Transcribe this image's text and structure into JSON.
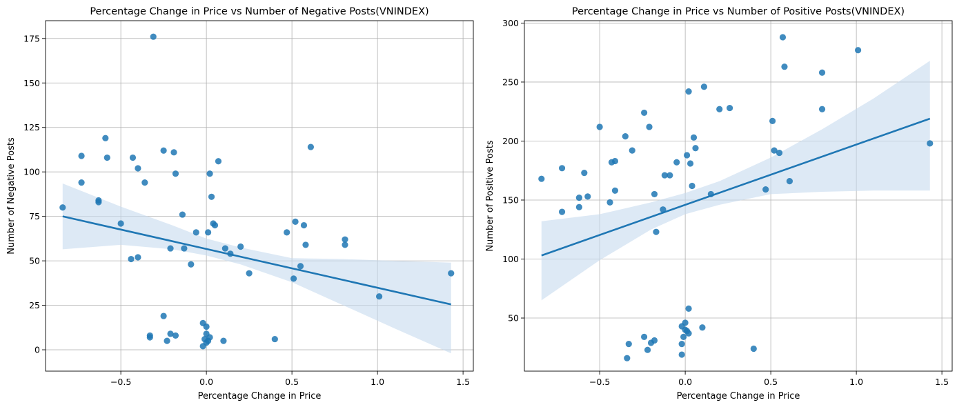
{
  "colors": {
    "point": "#1f77b4",
    "line": "#1f77b4",
    "band": "#c6dbef",
    "grid": "#b0b0b0",
    "axis": "#000000"
  },
  "chart_data": [
    {
      "type": "scatter",
      "title": "Percentage Change in Price vs Number of Negative Posts(VNINDEX)",
      "xlabel": "Percentage Change in Price",
      "ylabel": "Number of Negative Posts",
      "xlim": [
        -0.94,
        1.56
      ],
      "ylim": [
        -12,
        185
      ],
      "xticks": [
        -0.5,
        0.0,
        0.5,
        1.0,
        1.5
      ],
      "xtick_labels": [
        "−0.5",
        "0.0",
        "0.5",
        "1.0",
        "1.5"
      ],
      "yticks": [
        0,
        25,
        50,
        75,
        100,
        125,
        150,
        175
      ],
      "ytick_labels": [
        "0",
        "25",
        "50",
        "75",
        "100",
        "125",
        "150",
        "175"
      ],
      "grid": true,
      "regression": {
        "x": [
          -0.84,
          1.43
        ],
        "y": [
          75,
          25.5
        ]
      },
      "confidence_band": {
        "x": [
          -0.84,
          -0.5,
          -0.2,
          0.0,
          0.2,
          0.5,
          0.8,
          1.1,
          1.43
        ],
        "upper": [
          93.5,
          80.5,
          70,
          62.5,
          57.5,
          51.5,
          51,
          50,
          49
        ],
        "lower": [
          56.5,
          59,
          56.5,
          53,
          48,
          38,
          25,
          12,
          -2
        ]
      },
      "points": [
        {
          "x": -0.84,
          "y": 80
        },
        {
          "x": -0.31,
          "y": 176
        },
        {
          "x": -0.73,
          "y": 109
        },
        {
          "x": -0.73,
          "y": 94
        },
        {
          "x": -0.63,
          "y": 84
        },
        {
          "x": -0.63,
          "y": 83
        },
        {
          "x": -0.59,
          "y": 119
        },
        {
          "x": -0.58,
          "y": 108
        },
        {
          "x": -0.5,
          "y": 71
        },
        {
          "x": -0.43,
          "y": 108
        },
        {
          "x": -0.4,
          "y": 102
        },
        {
          "x": -0.36,
          "y": 94
        },
        {
          "x": -0.44,
          "y": 51
        },
        {
          "x": -0.4,
          "y": 52
        },
        {
          "x": -0.25,
          "y": 112
        },
        {
          "x": -0.19,
          "y": 111
        },
        {
          "x": -0.18,
          "y": 99
        },
        {
          "x": -0.14,
          "y": 76
        },
        {
          "x": -0.21,
          "y": 57
        },
        {
          "x": -0.13,
          "y": 57
        },
        {
          "x": -0.06,
          "y": 66
        },
        {
          "x": -0.09,
          "y": 48
        },
        {
          "x": 0.02,
          "y": 99
        },
        {
          "x": 0.07,
          "y": 106
        },
        {
          "x": 0.03,
          "y": 86
        },
        {
          "x": 0.04,
          "y": 71
        },
        {
          "x": 0.05,
          "y": 70
        },
        {
          "x": 0.01,
          "y": 66
        },
        {
          "x": 0.11,
          "y": 57
        },
        {
          "x": 0.2,
          "y": 58
        },
        {
          "x": 0.14,
          "y": 54
        },
        {
          "x": 0.25,
          "y": 43
        },
        {
          "x": 0.47,
          "y": 66
        },
        {
          "x": 0.52,
          "y": 72
        },
        {
          "x": 0.57,
          "y": 70
        },
        {
          "x": 0.58,
          "y": 59
        },
        {
          "x": 0.61,
          "y": 114
        },
        {
          "x": 0.55,
          "y": 47
        },
        {
          "x": 0.51,
          "y": 40
        },
        {
          "x": 0.81,
          "y": 62
        },
        {
          "x": 0.81,
          "y": 59
        },
        {
          "x": 1.01,
          "y": 30
        },
        {
          "x": 1.43,
          "y": 43
        },
        {
          "x": -0.33,
          "y": 8
        },
        {
          "x": -0.33,
          "y": 7
        },
        {
          "x": -0.25,
          "y": 19
        },
        {
          "x": -0.21,
          "y": 9
        },
        {
          "x": -0.18,
          "y": 8
        },
        {
          "x": -0.23,
          "y": 5
        },
        {
          "x": -0.02,
          "y": 15
        },
        {
          "x": 0.0,
          "y": 13
        },
        {
          "x": 0.0,
          "y": 9
        },
        {
          "x": 0.02,
          "y": 7
        },
        {
          "x": -0.01,
          "y": 6
        },
        {
          "x": 0.01,
          "y": 5
        },
        {
          "x": 0.0,
          "y": 4
        },
        {
          "x": -0.02,
          "y": 2
        },
        {
          "x": 0.1,
          "y": 5
        },
        {
          "x": 0.4,
          "y": 6
        }
      ]
    },
    {
      "type": "scatter",
      "title": "Percentage Change in Price vs Number of Positive Posts(VNINDEX)",
      "xlabel": "Percentage Change in Price",
      "ylabel": "Number of Positive Posts",
      "xlim": [
        -0.94,
        1.56
      ],
      "ylim": [
        5,
        302
      ],
      "xticks": [
        -0.5,
        0.0,
        0.5,
        1.0,
        1.5
      ],
      "xtick_labels": [
        "−0.5",
        "0.0",
        "0.5",
        "1.0",
        "1.5"
      ],
      "yticks": [
        50,
        100,
        150,
        200,
        250,
        300
      ],
      "ytick_labels": [
        "50",
        "100",
        "150",
        "200",
        "250",
        "300"
      ],
      "grid": true,
      "regression": {
        "x": [
          -0.84,
          1.43
        ],
        "y": [
          103,
          219
        ]
      },
      "confidence_band": {
        "x": [
          -0.84,
          -0.5,
          -0.2,
          0.0,
          0.2,
          0.5,
          0.8,
          1.1,
          1.43
        ],
        "upper": [
          132,
          138,
          148,
          156,
          166,
          186,
          210,
          236,
          268
        ],
        "lower": [
          65,
          99,
          125,
          138,
          146,
          155,
          157,
          158,
          158
        ]
      },
      "points": [
        {
          "x": -0.84,
          "y": 168
        },
        {
          "x": -0.72,
          "y": 177
        },
        {
          "x": -0.72,
          "y": 140
        },
        {
          "x": -0.62,
          "y": 152
        },
        {
          "x": -0.62,
          "y": 144
        },
        {
          "x": -0.59,
          "y": 173
        },
        {
          "x": -0.57,
          "y": 153
        },
        {
          "x": -0.5,
          "y": 212
        },
        {
          "x": -0.43,
          "y": 182
        },
        {
          "x": -0.41,
          "y": 183
        },
        {
          "x": -0.41,
          "y": 158
        },
        {
          "x": -0.44,
          "y": 148
        },
        {
          "x": -0.35,
          "y": 204
        },
        {
          "x": -0.31,
          "y": 192
        },
        {
          "x": -0.24,
          "y": 224
        },
        {
          "x": -0.21,
          "y": 212
        },
        {
          "x": -0.18,
          "y": 155
        },
        {
          "x": -0.17,
          "y": 123
        },
        {
          "x": -0.13,
          "y": 142
        },
        {
          "x": -0.12,
          "y": 171
        },
        {
          "x": -0.09,
          "y": 171
        },
        {
          "x": -0.05,
          "y": 182
        },
        {
          "x": 0.01,
          "y": 188
        },
        {
          "x": 0.02,
          "y": 242
        },
        {
          "x": 0.03,
          "y": 181
        },
        {
          "x": 0.05,
          "y": 203
        },
        {
          "x": 0.06,
          "y": 194
        },
        {
          "x": 0.04,
          "y": 162
        },
        {
          "x": 0.11,
          "y": 246
        },
        {
          "x": 0.2,
          "y": 227
        },
        {
          "x": 0.26,
          "y": 228
        },
        {
          "x": 0.15,
          "y": 155
        },
        {
          "x": 0.51,
          "y": 217
        },
        {
          "x": 0.52,
          "y": 192
        },
        {
          "x": 0.55,
          "y": 190
        },
        {
          "x": 0.47,
          "y": 159
        },
        {
          "x": 0.57,
          "y": 288
        },
        {
          "x": 0.58,
          "y": 263
        },
        {
          "x": 0.61,
          "y": 166
        },
        {
          "x": 0.8,
          "y": 258
        },
        {
          "x": 0.8,
          "y": 227
        },
        {
          "x": 1.01,
          "y": 277
        },
        {
          "x": 1.43,
          "y": 198
        },
        {
          "x": -0.33,
          "y": 28
        },
        {
          "x": -0.34,
          "y": 16
        },
        {
          "x": -0.24,
          "y": 34
        },
        {
          "x": -0.22,
          "y": 23
        },
        {
          "x": -0.2,
          "y": 29
        },
        {
          "x": -0.18,
          "y": 31
        },
        {
          "x": -0.02,
          "y": 43
        },
        {
          "x": 0.0,
          "y": 46
        },
        {
          "x": 0.02,
          "y": 58
        },
        {
          "x": 0.0,
          "y": 40
        },
        {
          "x": 0.01,
          "y": 39
        },
        {
          "x": 0.02,
          "y": 37
        },
        {
          "x": -0.01,
          "y": 34
        },
        {
          "x": -0.02,
          "y": 28
        },
        {
          "x": -0.02,
          "y": 19
        },
        {
          "x": 0.1,
          "y": 42
        },
        {
          "x": 0.4,
          "y": 24
        }
      ]
    }
  ]
}
